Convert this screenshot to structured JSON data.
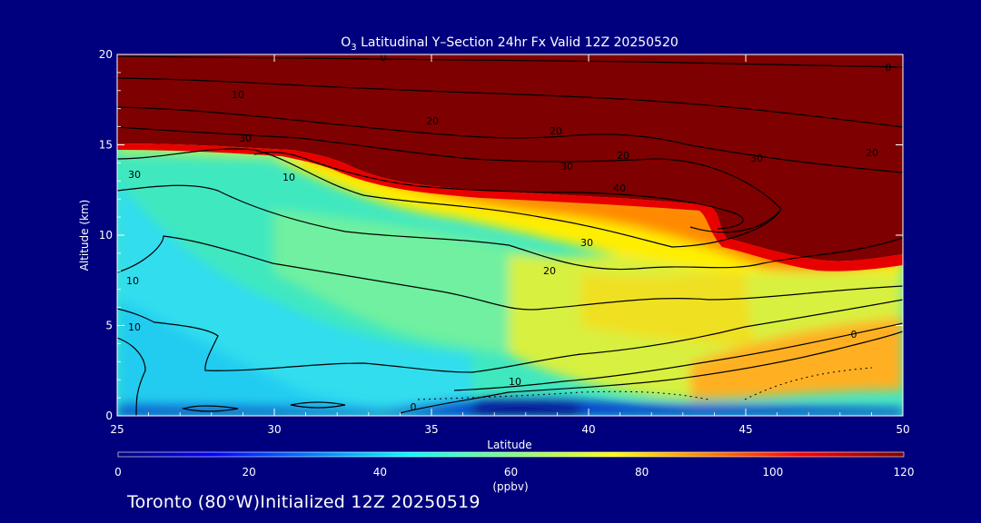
{
  "chart_data": {
    "type": "heatmap",
    "title_main": "O",
    "title_sub": "3",
    "title_rest": " Latitudinal Y–Section 24hr  Fx Valid 12Z 20250520",
    "xlabel": "Latitude",
    "ylabel": "Altitude (km)",
    "xlim": [
      25,
      50
    ],
    "ylim": [
      0,
      20
    ],
    "x_ticks": [
      "25",
      "30",
      "35",
      "40",
      "45",
      "50"
    ],
    "y_ticks": [
      "0",
      "5",
      "10",
      "15",
      "20"
    ],
    "colorbar": {
      "ticks": [
        "0",
        "20",
        "40",
        "60",
        "80",
        "100",
        "120"
      ],
      "range": [
        0,
        120
      ],
      "unit": "(ppbv)",
      "colors": [
        "#00007f",
        "#0000ff",
        "#0080ff",
        "#00ffff",
        "#80ff80",
        "#ffff00",
        "#ff8000",
        "#ff0000",
        "#7f0000"
      ]
    },
    "contour_labels": [
      "0",
      "10",
      "10",
      "20",
      "20",
      "20",
      "30",
      "30",
      "30",
      "40",
      "30",
      "20",
      "10",
      "10",
      "20",
      "30",
      "0",
      "10",
      "0",
      "0",
      "0",
      "20",
      "20",
      "10",
      "10",
      "0"
    ],
    "footer": "Toronto (80°W)Initialized 12Z 20250519"
  }
}
